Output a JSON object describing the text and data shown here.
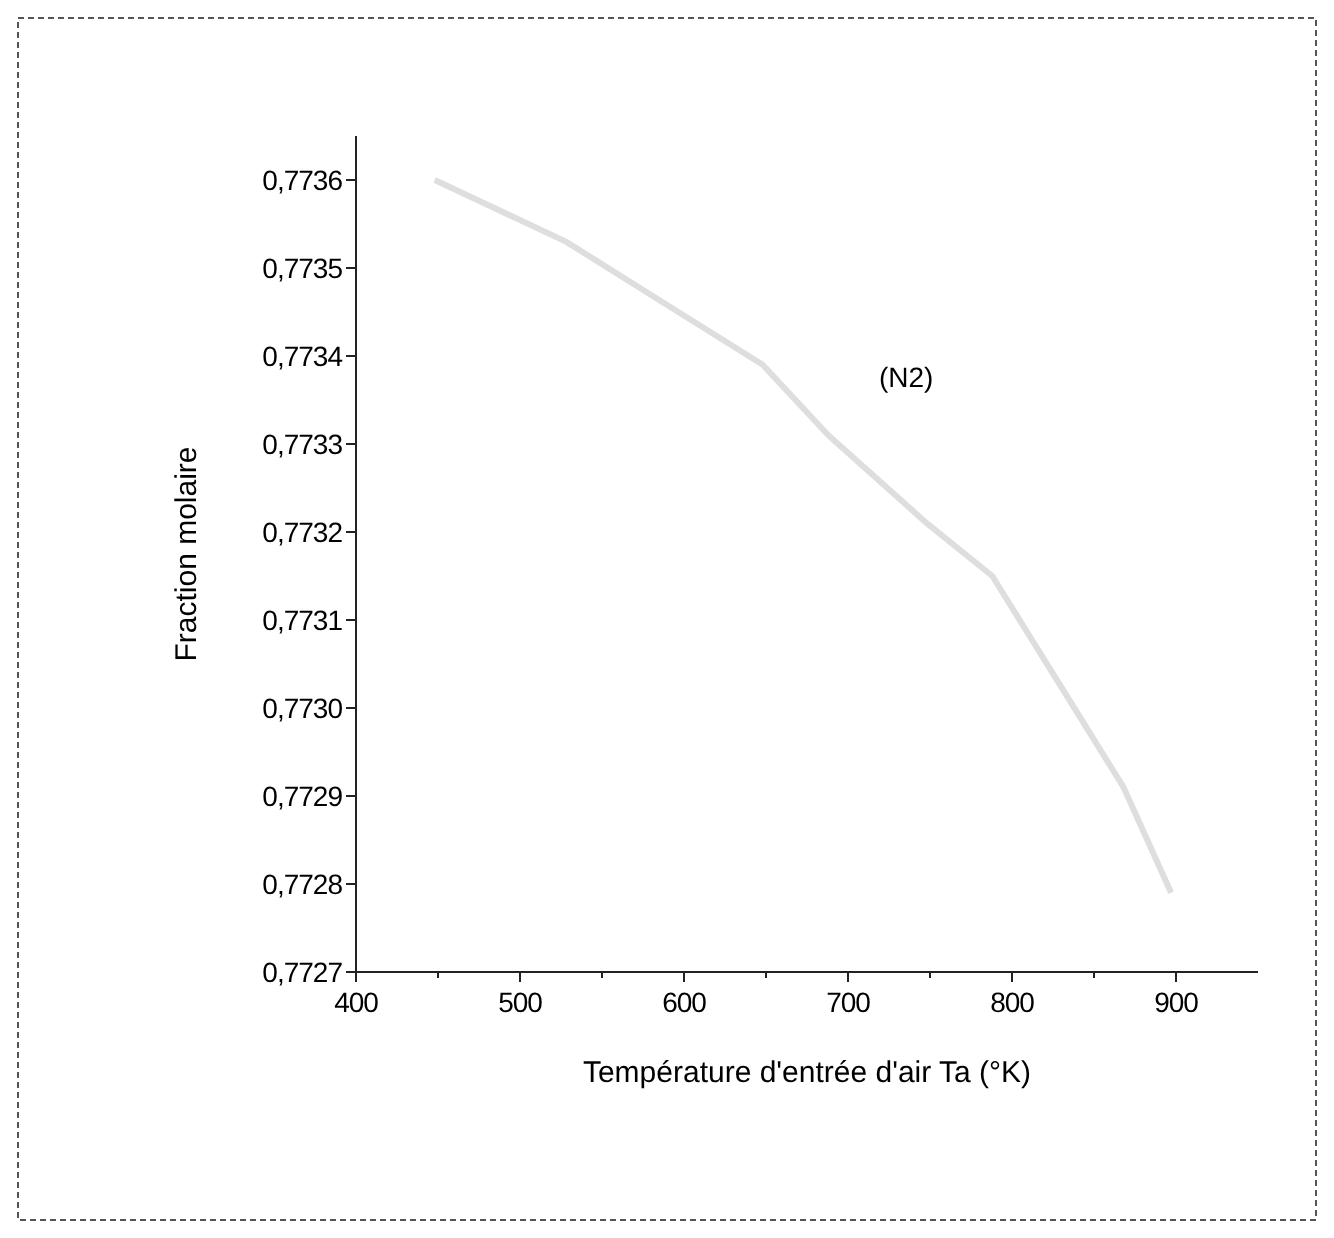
{
  "chart_data": {
    "type": "line",
    "xlabel": "Température d'entrée d'air Ta (°K)",
    "ylabel": "Fraction molaire",
    "xlim": [
      400,
      950
    ],
    "ylim": [
      0.7727,
      0.77365
    ],
    "xticks": [
      400,
      {
        "value": 450,
        "label": null
      },
      500,
      {
        "value": 550,
        "label": null
      },
      600,
      {
        "value": 650,
        "label": null
      },
      700,
      {
        "value": 750,
        "label": null
      },
      800,
      {
        "value": 850,
        "label": null
      },
      900
    ],
    "yticks": [
      {
        "value": 0.7727,
        "label": "0,7727"
      },
      {
        "value": 0.7728,
        "label": "0,7728"
      },
      {
        "value": 0.7729,
        "label": "0,7729"
      },
      {
        "value": 0.773,
        "label": "0,7730"
      },
      {
        "value": 0.7731,
        "label": "0,7731"
      },
      {
        "value": 0.7732,
        "label": "0,7732"
      },
      {
        "value": 0.7733,
        "label": "0,7733"
      },
      {
        "value": 0.7734,
        "label": "0,7734"
      },
      {
        "value": 0.7735,
        "label": "0,7735"
      },
      {
        "value": 0.7736,
        "label": "0,7736"
      }
    ],
    "x": [
      448,
      528,
      588,
      648,
      688,
      748,
      788,
      828,
      868,
      897
    ],
    "series": [
      {
        "color": "#dedede",
        "values": [
          0.7736,
          0.77353,
          0.77346,
          0.77339,
          0.77331,
          0.77321,
          0.77315,
          0.77303,
          0.77291,
          0.77279
        ]
      }
    ],
    "annotations": [
      "(N2)"
    ],
    "grid": false,
    "marker": "none",
    "line_style": "solid"
  }
}
